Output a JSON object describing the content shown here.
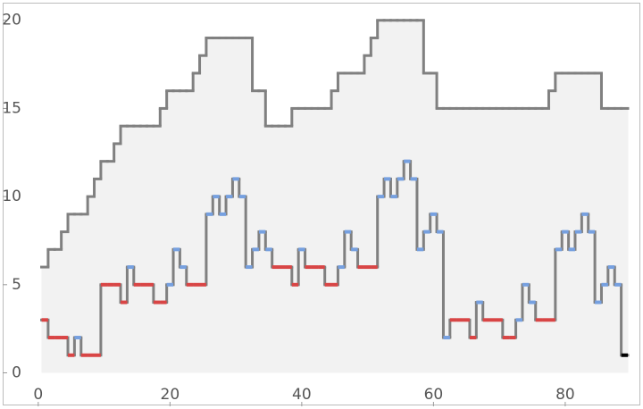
{
  "chart_data": {
    "type": "step",
    "x": [
      1,
      2,
      3,
      4,
      5,
      6,
      7,
      8,
      9,
      10,
      11,
      12,
      13,
      14,
      15,
      16,
      17,
      18,
      19,
      20,
      21,
      22,
      23,
      24,
      25,
      26,
      27,
      28,
      29,
      30,
      31,
      32,
      33,
      34,
      35,
      36,
      37,
      38,
      39,
      40,
      41,
      42,
      43,
      44,
      45,
      46,
      47,
      48,
      49,
      50,
      51,
      52,
      53,
      54,
      55,
      56,
      57,
      58,
      59,
      60,
      61,
      62,
      63,
      64,
      65,
      66,
      67,
      68,
      69,
      70,
      71,
      72,
      73,
      74,
      75,
      76,
      77,
      78,
      79,
      80,
      81,
      82,
      83,
      84,
      85,
      86,
      87,
      88,
      89
    ],
    "series": [
      {
        "color": "#808080",
        "fill": "#f2f2f2",
        "values": [
          6,
          7,
          7,
          8,
          9,
          9,
          9,
          10,
          11,
          12,
          12,
          13,
          14,
          14,
          14,
          14,
          14,
          14,
          15,
          16,
          16,
          16,
          16,
          17,
          18,
          19,
          19,
          19,
          19,
          19,
          19,
          19,
          16,
          16,
          14,
          14,
          14,
          14,
          15,
          15,
          15,
          15,
          15,
          15,
          16,
          17,
          17,
          17,
          17,
          18,
          19,
          20,
          20,
          20,
          20,
          20,
          20,
          20,
          17,
          17,
          15,
          15,
          15,
          15,
          15,
          15,
          15,
          15,
          15,
          15,
          15,
          15,
          15,
          15,
          15,
          15,
          15,
          16,
          17,
          17,
          17,
          17,
          17,
          17,
          17,
          15,
          15,
          15,
          15
        ]
      },
      {
        "color": "#808080",
        "values": [
          3,
          2,
          2,
          2,
          1,
          2,
          1,
          1,
          1,
          5,
          5,
          5,
          4,
          6,
          5,
          5,
          5,
          4,
          4,
          5,
          7,
          6,
          5,
          5,
          5,
          9,
          10,
          9,
          10,
          11,
          10,
          6,
          7,
          8,
          7,
          6,
          6,
          6,
          5,
          7,
          6,
          6,
          6,
          5,
          5,
          6,
          8,
          7,
          6,
          6,
          6,
          10,
          11,
          10,
          11,
          12,
          11,
          7,
          8,
          9,
          8,
          2,
          3,
          3,
          3,
          2,
          4,
          3,
          3,
          3,
          2,
          2,
          3,
          5,
          4,
          3,
          3,
          3,
          7,
          8,
          7,
          8,
          9,
          8,
          4,
          5,
          6,
          5,
          1
        ],
        "point_colors": [
          "#d94545",
          "#d94545",
          "#d94545",
          "#d94545",
          "#d94545",
          "#76a0e0",
          "#d94545",
          "#d94545",
          "#d94545",
          "#d94545",
          "#d94545",
          "#d94545",
          "#d94545",
          "#76a0e0",
          "#d94545",
          "#d94545",
          "#d94545",
          "#d94545",
          "#d94545",
          "#76a0e0",
          "#76a0e0",
          "#76a0e0",
          "#d94545",
          "#d94545",
          "#d94545",
          "#76a0e0",
          "#76a0e0",
          "#76a0e0",
          "#76a0e0",
          "#76a0e0",
          "#76a0e0",
          "#76a0e0",
          "#76a0e0",
          "#76a0e0",
          "#76a0e0",
          "#d94545",
          "#d94545",
          "#d94545",
          "#d94545",
          "#76a0e0",
          "#d94545",
          "#d94545",
          "#d94545",
          "#d94545",
          "#d94545",
          "#76a0e0",
          "#76a0e0",
          "#76a0e0",
          "#d94545",
          "#d94545",
          "#d94545",
          "#76a0e0",
          "#76a0e0",
          "#76a0e0",
          "#76a0e0",
          "#76a0e0",
          "#76a0e0",
          "#76a0e0",
          "#76a0e0",
          "#76a0e0",
          "#76a0e0",
          "#76a0e0",
          "#d94545",
          "#d94545",
          "#d94545",
          "#d94545",
          "#76a0e0",
          "#d94545",
          "#d94545",
          "#d94545",
          "#d94545",
          "#d94545",
          "#76a0e0",
          "#76a0e0",
          "#76a0e0",
          "#d94545",
          "#d94545",
          "#d94545",
          "#76a0e0",
          "#76a0e0",
          "#76a0e0",
          "#76a0e0",
          "#76a0e0",
          "#76a0e0",
          "#76a0e0",
          "#76a0e0",
          "#76a0e0",
          "#76a0e0",
          "#000000"
        ]
      }
    ],
    "xlim": [
      -5.4,
      91.4
    ],
    "ylim": [
      -1.9,
      21.0
    ],
    "xticks": [
      0,
      20,
      40,
      60,
      80
    ],
    "yticks": [
      0,
      5,
      10,
      15,
      20
    ]
  }
}
